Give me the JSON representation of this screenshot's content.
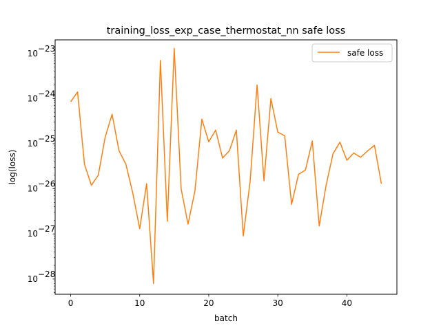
{
  "chart_data": {
    "type": "line",
    "title": "training_loss_exp_case_thermostat_nn safe loss",
    "xlabel": "batch",
    "ylabel": "log(loss)",
    "yscale": "log",
    "xlim": [
      -2.25,
      47.25
    ],
    "ylim": [
      4.6e-29,
      2e-23
    ],
    "x_ticks": [
      0,
      10,
      20,
      30,
      40
    ],
    "y_ticks": [
      {
        "value": 1e-28,
        "base": "10",
        "exp": "−28"
      },
      {
        "value": 1e-27,
        "base": "10",
        "exp": "−27"
      },
      {
        "value": 1e-26,
        "base": "10",
        "exp": "−26"
      },
      {
        "value": 1e-25,
        "base": "10",
        "exp": "−25"
      },
      {
        "value": 1e-24,
        "base": "10",
        "exp": "−24"
      },
      {
        "value": 1e-23,
        "base": "10",
        "exp": "−23"
      }
    ],
    "grid": false,
    "legend_position": "upper right",
    "series": [
      {
        "name": "safe loss",
        "color": "#ff7f0e",
        "x": [
          0,
          1,
          2,
          3,
          4,
          5,
          6,
          7,
          8,
          9,
          10,
          11,
          12,
          13,
          14,
          15,
          16,
          17,
          18,
          19,
          20,
          21,
          22,
          23,
          24,
          25,
          26,
          27,
          28,
          29,
          30,
          31,
          32,
          33,
          34,
          35,
          36,
          37,
          38,
          39,
          40,
          41,
          42,
          43,
          44,
          45
        ],
        "y": [
          8.5e-25,
          1.4e-24,
          3.5e-26,
          1.2e-26,
          2e-26,
          1.4e-25,
          4.5e-25,
          7e-26,
          3.5e-26,
          8e-27,
          1.3e-27,
          1.3e-26,
          8e-29,
          7e-24,
          1.9e-27,
          1.3e-23,
          1e-26,
          1.65e-27,
          9e-27,
          3.5e-25,
          1.1e-25,
          2e-25,
          4.8e-26,
          7e-26,
          2e-25,
          9e-28,
          1.5e-26,
          2e-24,
          1.5e-26,
          1e-24,
          1.8e-25,
          1.5e-25,
          4.5e-27,
          2.1e-26,
          2.6e-26,
          1.15e-25,
          1.5e-27,
          1.2e-26,
          6e-26,
          1.08e-25,
          4.3e-26,
          6.2e-26,
          5e-26,
          6.9e-26,
          9.2e-26,
          1.3e-26
        ]
      }
    ]
  }
}
